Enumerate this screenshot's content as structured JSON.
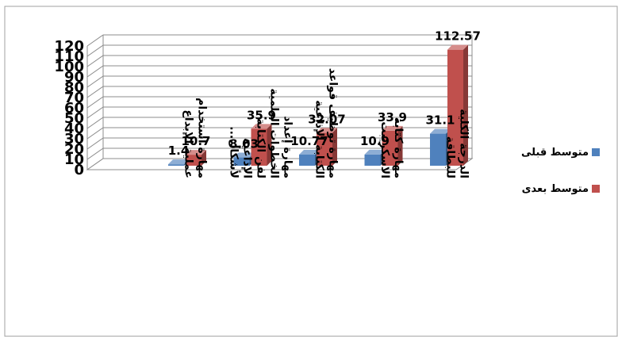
{
  "chart_data": {
    "type": "bar",
    "title": "",
    "categories": [
      "مهارة استخدام عملية الإبداع",
      "مهارة إعداد الخطوات العلمية لفن الكتابة الإذاعية لأشكال...",
      "مهارة توظيف قواعد الكتابة الإذاعية",
      "مهارة كتابة الاسكريبت",
      "الدرجة الكلية للبطاقة"
    ],
    "series": [
      {
        "name": "متوسط قبلى",
        "color": "#4f81bd",
        "values": [
          1.4,
          8.03,
          10.77,
          10.9,
          31.1
        ]
      },
      {
        "name": "متوسط بعدى",
        "color": "#c0504d",
        "values": [
          10.7,
          35.9,
          32.07,
          33.9,
          112.57
        ]
      }
    ],
    "ylim": [
      0,
      120
    ],
    "yticks": [
      0,
      10,
      20,
      30,
      40,
      50,
      60,
      70,
      80,
      90,
      100,
      110,
      120
    ],
    "grid": true,
    "legend_position": "right"
  }
}
